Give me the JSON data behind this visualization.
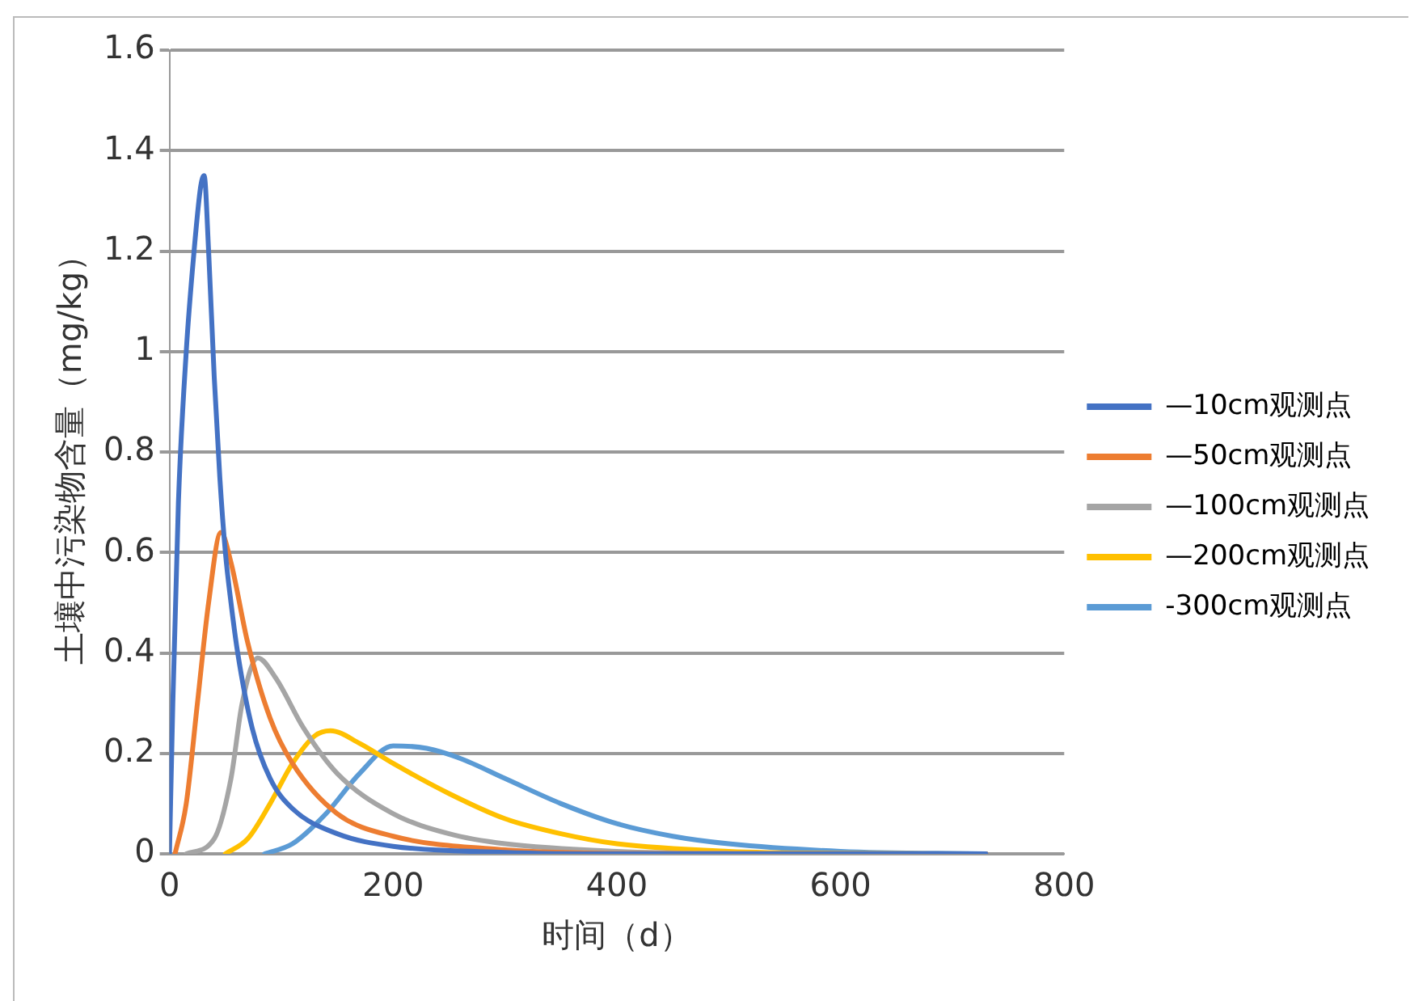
{
  "chart_data": {
    "type": "line",
    "xlabel": "时间（d）",
    "ylabel": "土壤中污染物含量（mg/kg）",
    "xlim": [
      0,
      800
    ],
    "xticks": [
      0,
      200,
      400,
      600,
      800
    ],
    "ylim": [
      0,
      1.6
    ],
    "yticks": [
      0,
      0.2,
      0.4,
      0.6,
      0.8,
      1,
      1.2,
      1.4,
      1.6
    ],
    "grid": "y",
    "legend": "right",
    "marker": "none",
    "line_style": "solid",
    "series": [
      {
        "name": "—10cm观测点",
        "color": "#4472c4",
        "x": [
          0,
          3,
          8,
          15,
          22,
          28,
          31,
          35,
          40,
          45,
          50,
          55,
          61,
          74,
          90,
          110,
          150,
          200,
          300,
          400,
          730
        ],
        "values": [
          0,
          0.3,
          0.7,
          1.0,
          1.2,
          1.33,
          1.35,
          1.2,
          0.95,
          0.75,
          0.6,
          0.5,
          0.4,
          0.25,
          0.15,
          0.09,
          0.04,
          0.015,
          0.003,
          0,
          0
        ]
      },
      {
        "name": "—50cm观测点",
        "color": "#ed7d31",
        "x": [
          5,
          15,
          25,
          35,
          46,
          55,
          70,
          90,
          110,
          150,
          200,
          300,
          400,
          730
        ],
        "values": [
          0,
          0.1,
          0.3,
          0.5,
          0.64,
          0.58,
          0.42,
          0.27,
          0.18,
          0.08,
          0.035,
          0.008,
          0.001,
          0
        ]
      },
      {
        "name": "—100cm观测点",
        "color": "#a5a5a5",
        "x": [
          15,
          40,
          55,
          65,
          79,
          95,
          120,
          150,
          200,
          250,
          300,
          400,
          500,
          730
        ],
        "values": [
          0,
          0.03,
          0.15,
          0.3,
          0.39,
          0.35,
          0.25,
          0.16,
          0.08,
          0.04,
          0.02,
          0.005,
          0.001,
          0
        ]
      },
      {
        "name": "—200cm观测点",
        "color": "#ffc000",
        "x": [
          50,
          70,
          90,
          110,
          130,
          144,
          170,
          200,
          250,
          300,
          350,
          400,
          500,
          600,
          730
        ],
        "values": [
          0,
          0.03,
          0.1,
          0.18,
          0.235,
          0.245,
          0.22,
          0.18,
          0.12,
          0.07,
          0.04,
          0.02,
          0.005,
          0.001,
          0
        ]
      },
      {
        "name": "-300cm观测点",
        "color": "#5b9bd5",
        "x": [
          85,
          110,
          140,
          170,
          200,
          230,
          260,
          300,
          350,
          400,
          450,
          500,
          600,
          730
        ],
        "values": [
          0,
          0.02,
          0.08,
          0.16,
          0.215,
          0.21,
          0.19,
          0.15,
          0.1,
          0.06,
          0.035,
          0.02,
          0.005,
          0
        ]
      }
    ]
  }
}
